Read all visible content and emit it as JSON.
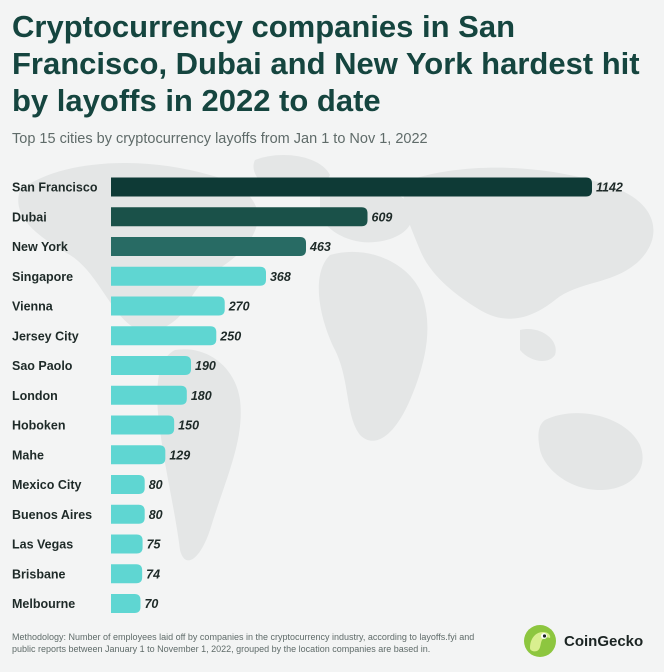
{
  "header": {
    "title": "Cryptocurrency companies in San Francisco, Dubai and New York hardest hit by layoffs in 2022 to date",
    "subtitle": "Top 15 cities by cryptocurrency layoffs from Jan 1 to Nov 1, 2022"
  },
  "footer": {
    "methodology": "Methodology: Number of employees laid off by companies in the cryptocurrency industry, according to layoffs.fyi and public reports between January 1 to November 1, 2022, grouped by the location companies are based in.",
    "brand": "CoinGecko"
  },
  "colors": {
    "title": "#15453f",
    "top1": "#0e3a36",
    "top2": "#1a5149",
    "top3": "#286b64",
    "rest": "#5fd6d2"
  },
  "chart_data": {
    "type": "bar",
    "orientation": "horizontal",
    "categories": [
      "San Francisco",
      "Dubai",
      "New York",
      "Singapore",
      "Vienna",
      "Jersey City",
      "Sao Paolo",
      "London",
      "Hoboken",
      "Mahe",
      "Mexico City",
      "Buenos Aires",
      "Las Vegas",
      "Brisbane",
      "Melbourne"
    ],
    "values": [
      1142,
      609,
      463,
      368,
      270,
      250,
      190,
      180,
      150,
      129,
      80,
      80,
      75,
      74,
      70
    ],
    "xlim": [
      0,
      1142
    ],
    "grid": false,
    "legend": "none"
  }
}
